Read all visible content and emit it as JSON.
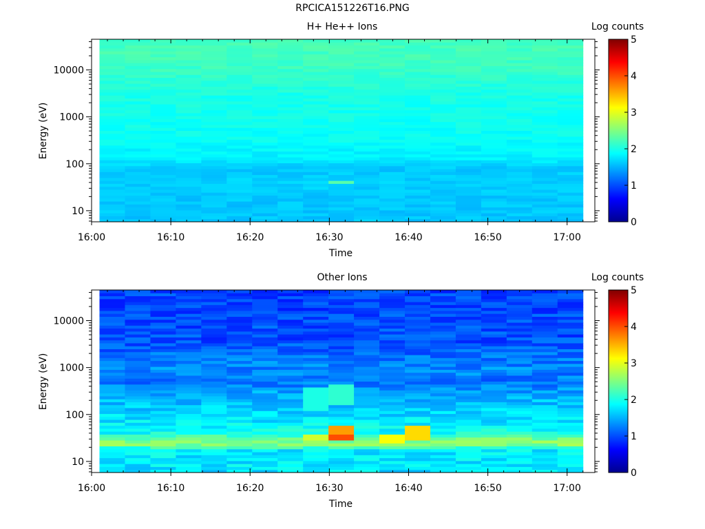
{
  "figure": {
    "title": "RPCICA151226T16.PNG"
  },
  "colorscale": {
    "stops": [
      "#00008f",
      "#0000ff",
      "#0080ff",
      "#00ffff",
      "#80ff80",
      "#ffff00",
      "#ff8000",
      "#ff0000",
      "#800000"
    ]
  },
  "chart_data": [
    {
      "type": "heatmap",
      "title": "H+ He++ Ions",
      "xlabel": "Time",
      "ylabel": "Energy (eV)",
      "yscale": "log",
      "x_ticks": [
        "16:00",
        "16:10",
        "16:20",
        "16:30",
        "16:40",
        "16:50",
        "17:00"
      ],
      "x_tick_minutes": [
        0,
        10,
        20,
        30,
        40,
        50,
        60
      ],
      "x_range_minutes": [
        0,
        63.5
      ],
      "data_x_range_minutes": [
        1.0,
        62.0
      ],
      "y_ticks": [
        "10",
        "100",
        "1000",
        "10000"
      ],
      "y_tick_values": [
        10,
        100,
        1000,
        10000
      ],
      "y_range": [
        5.8,
        45000
      ],
      "time_columns": 19,
      "energy_profile": {
        "log_energy": [
          0.8,
          1.3,
          1.6,
          1.9,
          2.1,
          2.5,
          3.0,
          3.5,
          4.0,
          4.3,
          4.6
        ],
        "log_counts": [
          1.6,
          1.6,
          1.65,
          1.6,
          1.8,
          1.9,
          1.95,
          2.0,
          2.15,
          2.2,
          2.2
        ]
      },
      "hotspots": [
        {
          "time_minutes": 31.0,
          "energy_low": 37,
          "energy_high": 42,
          "log_counts": 2.3
        }
      ],
      "colorbar": {
        "label": "Log counts",
        "range": [
          0,
          5
        ],
        "ticks": [
          "0",
          "1",
          "2",
          "3",
          "4",
          "5"
        ]
      }
    },
    {
      "type": "heatmap",
      "title": "Other Ions",
      "xlabel": "Time",
      "ylabel": "Energy (eV)",
      "yscale": "log",
      "x_ticks": [
        "16:00",
        "16:10",
        "16:20",
        "16:30",
        "16:40",
        "16:50",
        "17:00"
      ],
      "x_tick_minutes": [
        0,
        10,
        20,
        30,
        40,
        50,
        60
      ],
      "x_range_minutes": [
        0,
        63.5
      ],
      "data_x_range_minutes": [
        1.0,
        62.0
      ],
      "y_ticks": [
        "10",
        "100",
        "1000",
        "10000"
      ],
      "y_tick_values": [
        10,
        100,
        1000,
        10000
      ],
      "y_range": [
        5.8,
        45000
      ],
      "time_columns": 19,
      "energy_profile": {
        "log_energy": [
          0.8,
          1.25,
          1.35,
          1.45,
          1.6,
          1.9,
          2.2,
          2.45,
          2.7,
          3.0,
          3.3,
          3.6,
          4.0,
          4.3,
          4.6
        ],
        "log_counts": [
          1.75,
          1.8,
          2.5,
          2.55,
          1.95,
          1.75,
          1.6,
          1.45,
          1.2,
          1.3,
          1.15,
          1.0,
          1.0,
          0.95,
          0.95
        ]
      },
      "hotspots": [
        {
          "time_minutes": 31.0,
          "energy_low": 30,
          "energy_high": 40,
          "log_counts": 4.0
        },
        {
          "time_minutes": 31.0,
          "energy_low": 40,
          "energy_high": 58,
          "log_counts": 3.6
        },
        {
          "time_minutes": 29.0,
          "energy_low": 27,
          "energy_high": 40,
          "log_counts": 2.9
        },
        {
          "time_minutes": 38.0,
          "energy_low": 25,
          "energy_high": 40,
          "log_counts": 3.1
        },
        {
          "time_minutes": 41.0,
          "energy_low": 30,
          "energy_high": 55,
          "log_counts": 3.3
        },
        {
          "time_minutes": 28.0,
          "energy_low": 120,
          "energy_high": 400,
          "log_counts": 2.0
        },
        {
          "time_minutes": 31.0,
          "energy_low": 150,
          "energy_high": 450,
          "log_counts": 2.1
        }
      ],
      "colorbar": {
        "label": "Log counts",
        "range": [
          0,
          5
        ],
        "ticks": [
          "0",
          "1",
          "2",
          "3",
          "4",
          "5"
        ]
      }
    }
  ]
}
